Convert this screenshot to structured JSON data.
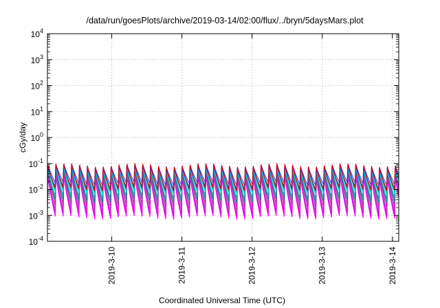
{
  "chart_data": {
    "type": "line",
    "title": "/data/run/goesPlots/archive/2019-03-14/02:00/flux/../bryn/5daysMars.plot",
    "xlabel": "Coordinated Universal Time (UTC)",
    "ylabel": "cGy/day",
    "yscale": "log",
    "ylim": [
      0.0001,
      10000
    ],
    "xlim": [
      "2019-03-09T02:00",
      "2019-03-14T02:10"
    ],
    "x_ticks": [
      "2019-3-10",
      "2019-3-11",
      "2019-3-12",
      "2019-3-13",
      "2019-3-14"
    ],
    "y_ticks": [
      {
        "base": "10",
        "exp": "-4",
        "value": 0.0001
      },
      {
        "base": "10",
        "exp": "-3",
        "value": 0.001
      },
      {
        "base": "10",
        "exp": "-2",
        "value": 0.01
      },
      {
        "base": "10",
        "exp": "-1",
        "value": 0.1
      },
      {
        "base": "10",
        "exp": "0",
        "value": 1
      },
      {
        "base": "10",
        "exp": "1",
        "value": 10
      },
      {
        "base": "10",
        "exp": "2",
        "value": 100
      },
      {
        "base": "10",
        "exp": "3",
        "value": 1000
      },
      {
        "base": "10",
        "exp": "4",
        "value": 10000
      }
    ],
    "grid": true,
    "legend": "none",
    "series": [
      {
        "color": "#ff00ff",
        "peak": 0.03,
        "trough": 0.0008
      },
      {
        "color": "#dd00dd",
        "peak": 0.035,
        "trough": 0.0011
      },
      {
        "color": "#cc33cc",
        "peak": 0.045,
        "trough": 0.0016
      },
      {
        "color": "#aa22aa",
        "peak": 0.05,
        "trough": 0.0022
      },
      {
        "color": "#008888",
        "peak": 0.06,
        "trough": 0.0035
      },
      {
        "color": "#00aaaa",
        "peak": 0.065,
        "trough": 0.005
      },
      {
        "color": "#22cccc",
        "peak": 0.07,
        "trough": 0.007
      },
      {
        "color": "#00bbdd",
        "peak": 0.075,
        "trough": 0.009
      },
      {
        "color": "#3355dd",
        "peak": 0.08,
        "trough": 0.012
      },
      {
        "color": "#2244ff",
        "peak": 0.085,
        "trough": 0.016
      },
      {
        "color": "#dd0000",
        "peak": 0.09,
        "trough": 0.01
      }
    ],
    "cycle_hours": 2.7
  }
}
